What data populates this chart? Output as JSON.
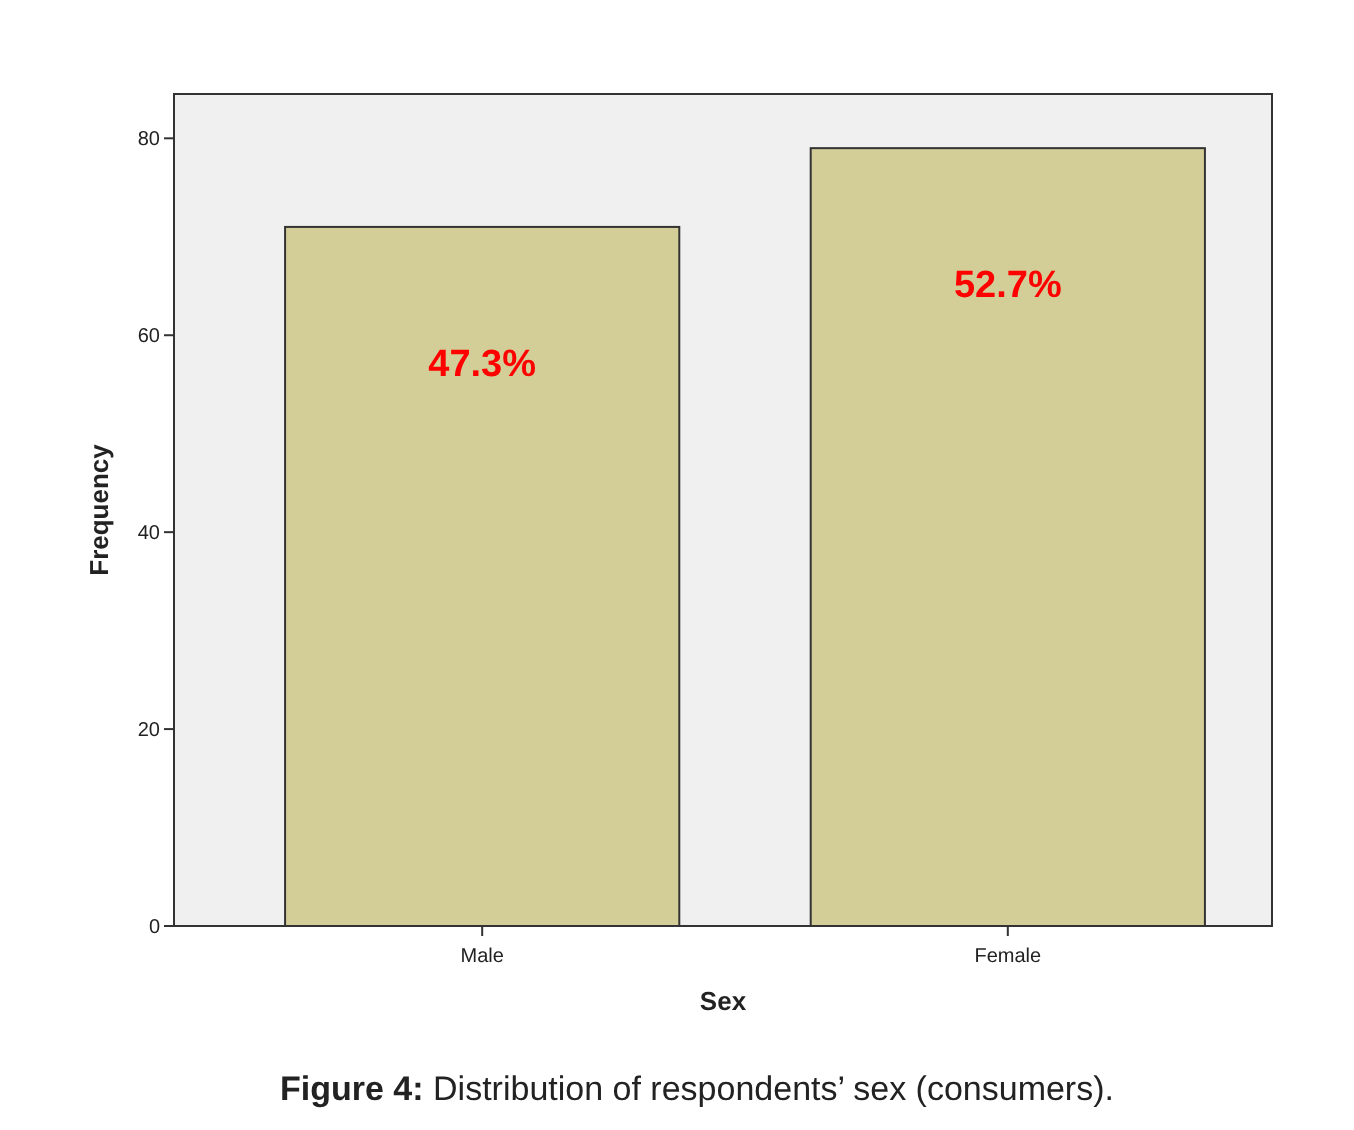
{
  "chart_data": {
    "type": "bar",
    "title": "Figure 4: Distribution of respondents’ sex (consumers).",
    "xlabel": "Sex",
    "ylabel": "Frequency",
    "categories": [
      "Male",
      "Female"
    ],
    "values": [
      71,
      79
    ],
    "color": "#d3ce97",
    "ylim": [
      0,
      84.5
    ],
    "yticks": [
      0,
      20,
      40,
      60,
      80
    ],
    "grid": false,
    "annotations": [
      "47.3%",
      "52.7%"
    ]
  }
}
